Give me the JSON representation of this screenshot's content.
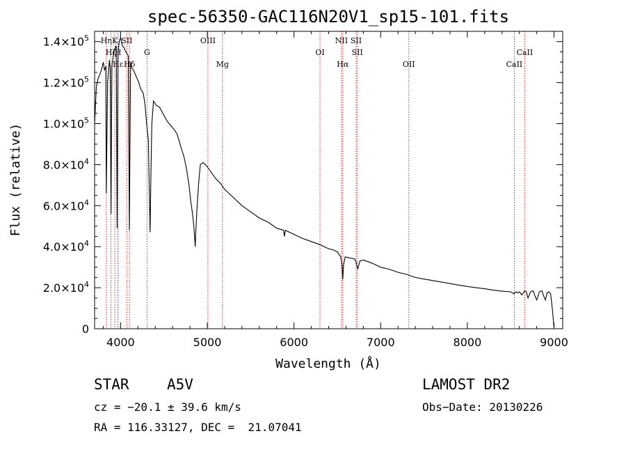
{
  "chart_data": {
    "type": "line",
    "title": "spec-56350-GAC116N20V1_sp15-101.fits",
    "xlabel": "Wavelength (Å)",
    "ylabel": "Flux (relative)",
    "xlim": [
      3700,
      9100
    ],
    "ylim": [
      0,
      145000
    ],
    "x_ticks": [
      {
        "v": 4000,
        "label": "4000"
      },
      {
        "v": 5000,
        "label": "5000"
      },
      {
        "v": 6000,
        "label": "6000"
      },
      {
        "v": 7000,
        "label": "7000"
      },
      {
        "v": 8000,
        "label": "8000"
      },
      {
        "v": 9000,
        "label": "9000"
      }
    ],
    "y_ticks": [
      {
        "v": 0,
        "mant": "0",
        "exp": ""
      },
      {
        "v": 20000,
        "mant": "2.0×10",
        "exp": "4"
      },
      {
        "v": 40000,
        "mant": "4.0×10",
        "exp": "4"
      },
      {
        "v": 60000,
        "mant": "6.0×10",
        "exp": "4"
      },
      {
        "v": 80000,
        "mant": "8.0×10",
        "exp": "4"
      },
      {
        "v": 100000,
        "mant": "1.0×10",
        "exp": "5"
      },
      {
        "v": 120000,
        "mant": "1.2×10",
        "exp": "5"
      },
      {
        "v": 140000,
        "mant": "1.4×10",
        "exp": "5"
      }
    ],
    "grid": false,
    "line_color": "#000000",
    "marker_color": "#cc2222",
    "series": [
      {
        "x": [
          3700,
          3720,
          3740,
          3760,
          3770,
          3790,
          3800,
          3815,
          3830,
          3835,
          3850,
          3865,
          3870,
          3880,
          3889,
          3900,
          3915,
          3930,
          3950,
          3960,
          3970,
          3985,
          4000,
          4020,
          4040,
          4060,
          4075,
          4090,
          4101,
          4115,
          4130,
          4150,
          4180,
          4210,
          4230,
          4260,
          4280,
          4300,
          4320,
          4330,
          4340,
          4350,
          4360,
          4380,
          4410,
          4450,
          4500,
          4540,
          4580,
          4620,
          4650,
          4680,
          4700,
          4730,
          4760,
          4790,
          4810,
          4830,
          4845,
          4855,
          4861,
          4868,
          4880,
          4900,
          4920,
          4950,
          4980,
          5000,
          5050,
          5100,
          5150,
          5200,
          5300,
          5400,
          5500,
          5600,
          5700,
          5800,
          5880,
          5890,
          5900,
          6000,
          6100,
          6200,
          6300,
          6400,
          6450,
          6500,
          6540,
          6555,
          6563,
          6572,
          6590,
          6650,
          6700,
          6720,
          6735,
          6760,
          6800,
          6900,
          7000,
          7100,
          7200,
          7300,
          7400,
          7500,
          7600,
          7700,
          7800,
          7900,
          8000,
          8100,
          8200,
          8300,
          8400,
          8500,
          8540,
          8560,
          8580,
          8600,
          8630,
          8660,
          8680,
          8700,
          8730,
          8760,
          8780,
          8800,
          8830,
          8860,
          8880,
          8900,
          8920,
          8940,
          8960,
          8980,
          9000
        ],
        "y": [
          100000,
          118000,
          122000,
          124000,
          125000,
          128000,
          130000,
          126000,
          128000,
          66000,
          120000,
          128000,
          131000,
          127000,
          56000,
          128000,
          133000,
          136000,
          138000,
          49000,
          135000,
          140000,
          142000,
          138000,
          137000,
          135000,
          134000,
          133000,
          48000,
          130000,
          127000,
          126000,
          123000,
          120000,
          117000,
          115000,
          110000,
          100000,
          92000,
          70000,
          47000,
          75000,
          100000,
          111000,
          109000,
          108000,
          104000,
          101000,
          99000,
          97000,
          95000,
          91000,
          88000,
          84000,
          78000,
          70000,
          62000,
          56000,
          50000,
          44000,
          40000,
          48000,
          58000,
          71000,
          80000,
          81000,
          80000,
          79000,
          76000,
          73000,
          71000,
          68000,
          64000,
          60000,
          57000,
          54000,
          52000,
          49000,
          48000,
          45000,
          48000,
          46000,
          44000,
          42500,
          41000,
          39000,
          38500,
          37500,
          35000,
          31000,
          24000,
          31000,
          35000,
          34500,
          34000,
          32000,
          29000,
          33000,
          33500,
          32000,
          30000,
          29000,
          27500,
          26500,
          25000,
          24200,
          23500,
          22800,
          22000,
          21300,
          20600,
          20000,
          19500,
          18800,
          18300,
          18000,
          17000,
          18000,
          17500,
          18000,
          16500,
          18500,
          18000,
          15000,
          18000,
          18500,
          16000,
          14000,
          18000,
          18500,
          16000,
          14000,
          17500,
          18000,
          17000,
          10000,
          500
        ]
      }
    ],
    "lines_markers": [
      {
        "name": "Hη",
        "x": 3835,
        "row": 1
      },
      {
        "name": "Hζ",
        "x": 3889,
        "row": 2
      },
      {
        "name": "Hε",
        "x": 3970,
        "row": 3
      },
      {
        "name": "K",
        "x": 3934,
        "row": 1
      },
      {
        "name": "H",
        "x": 3969,
        "row": 2
      },
      {
        "name": "SII",
        "x": 4072,
        "row": 1
      },
      {
        "name": "Hδ",
        "x": 4102,
        "row": 3
      },
      {
        "name": "G",
        "x": 4305,
        "row": 2
      },
      {
        "name": "OIII",
        "x": 5007,
        "row": 1
      },
      {
        "name": "Mg",
        "x": 5175,
        "row": 3
      },
      {
        "name": "OI",
        "x": 6300,
        "row": 2
      },
      {
        "name": "NII",
        "x": 6548,
        "row": 1
      },
      {
        "name": "Hα",
        "x": 6563,
        "row": 3
      },
      {
        "name": "SII",
        "x": 6717,
        "row": 1
      },
      {
        "name": "SII",
        "x": 6731,
        "row": 2
      },
      {
        "name": "OII",
        "x": 7325,
        "row": 3
      },
      {
        "name": "CaII",
        "x": 8542,
        "row": 3
      },
      {
        "name": "CaII",
        "x": 8662,
        "row": 2
      }
    ]
  },
  "info": {
    "class_label": "STAR",
    "subclass": "A5V",
    "survey": "LAMOST DR2",
    "cz": "cz = −20.1 ± 39.6 km/s",
    "obs_date": "Obs−Date: 20130226",
    "coords": "RA = 116.33127, DEC =  21.07041"
  }
}
